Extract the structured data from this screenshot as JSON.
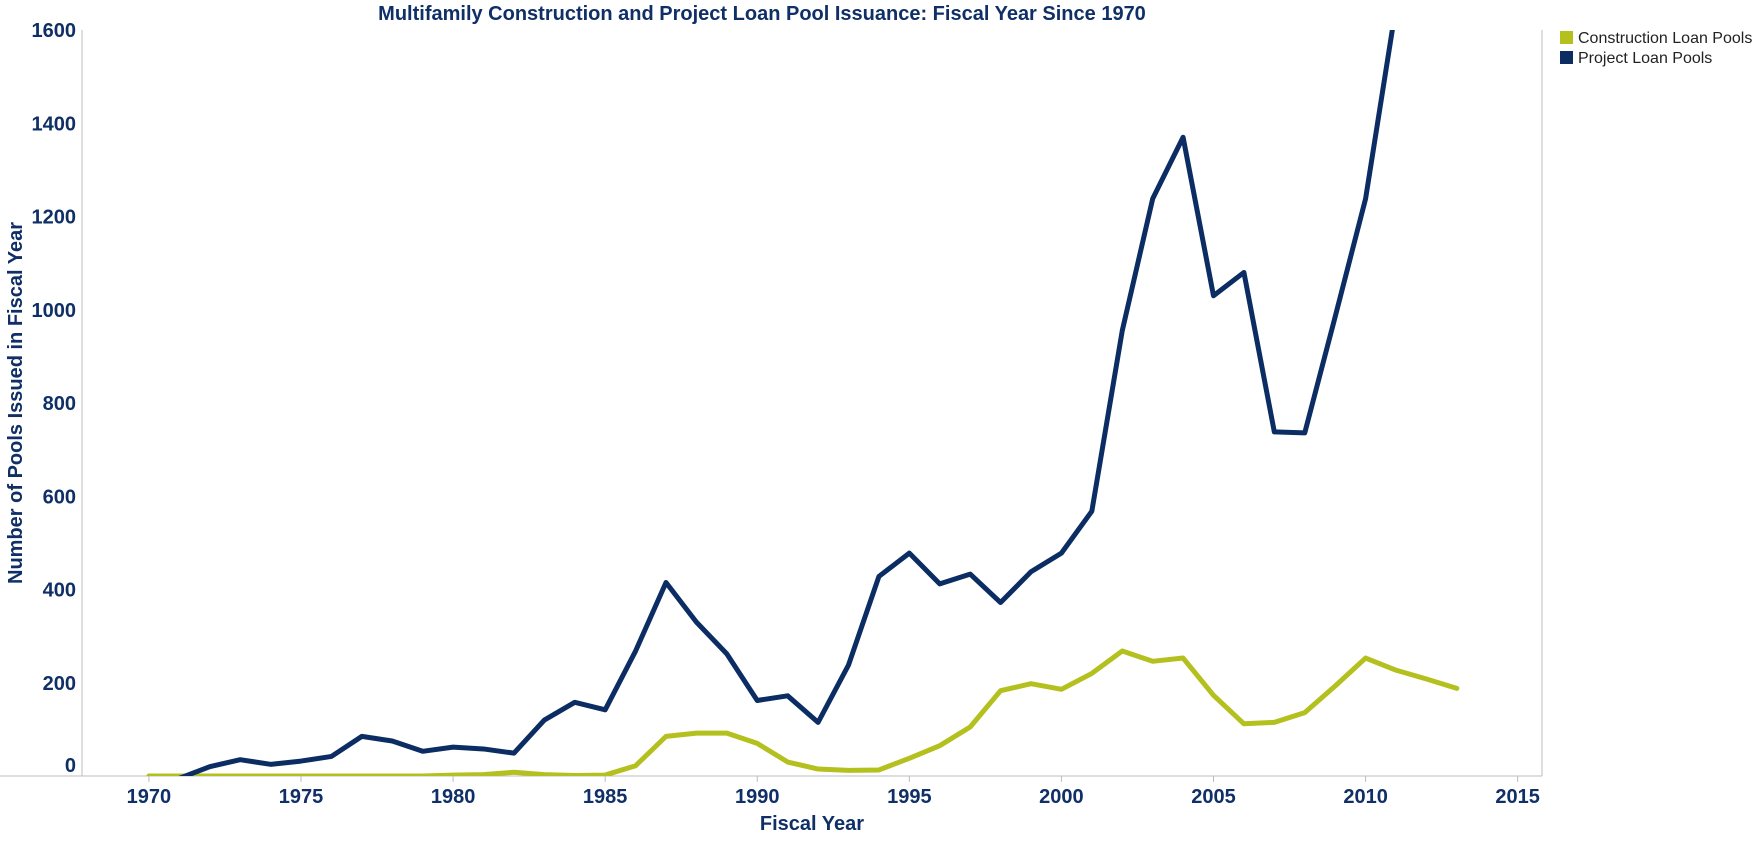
{
  "colors": {
    "text": "#0f2f66",
    "axis": "#bcbcbc",
    "frame": "#bdbdbd",
    "construction": "#b4c01e",
    "project": "#0b2d63"
  },
  "chart_data": {
    "type": "line",
    "title": "Multifamily Construction and Project Loan Pool Issuance: Fiscal Year Since 1970",
    "xlabel": "Fiscal Year",
    "ylabel": "Number of Pools Issued in Fiscal Year",
    "xlim": [
      1967.8,
      2015.8
    ],
    "ylim": [
      0,
      1600
    ],
    "xticks": [
      1970,
      1975,
      1980,
      1985,
      1990,
      1995,
      2000,
      2005,
      2010,
      2015
    ],
    "yticks": [
      0,
      200,
      400,
      600,
      800,
      1000,
      1200,
      1400,
      1600
    ],
    "grid": false,
    "legend_position": "right",
    "series": [
      {
        "name": "Construction Loan Pools",
        "x": [
          1970,
          1971,
          1972,
          1973,
          1974,
          1975,
          1976,
          1977,
          1978,
          1979,
          1980,
          1981,
          1982,
          1983,
          1984,
          1985,
          1986,
          1987,
          1988,
          1989,
          1990,
          1991,
          1992,
          1993,
          1994,
          1995,
          1996,
          1997,
          1998,
          1999,
          2000,
          2001,
          2002,
          2003,
          2004,
          2005,
          2006,
          2007,
          2008,
          2009,
          2010,
          2011,
          2012,
          2013
        ],
        "values": [
          0,
          0,
          0,
          0,
          0,
          0,
          0,
          0,
          0,
          0,
          2,
          3,
          8,
          3,
          1,
          2,
          22,
          85,
          92,
          92,
          70,
          30,
          15,
          12,
          13,
          38,
          65,
          105,
          183,
          198,
          186,
          220,
          268,
          246,
          253,
          173,
          112,
          115,
          136,
          193,
          253,
          227,
          208,
          188
        ]
      },
      {
        "name": "Project Loan Pools",
        "x": [
          1970,
          1971,
          1972,
          1973,
          1974,
          1975,
          1976,
          1977,
          1978,
          1979,
          1980,
          1981,
          1982,
          1983,
          1984,
          1985,
          1986,
          1987,
          1988,
          1989,
          1990,
          1991,
          1992,
          1993,
          1994,
          1995,
          1996,
          1997,
          1998,
          1999,
          2000,
          2001,
          2002,
          2003,
          2004,
          2005,
          2006,
          2007,
          2008,
          2009,
          2010,
          2011
        ],
        "values": [
          -20,
          -5,
          20,
          35,
          25,
          32,
          42,
          85,
          75,
          53,
          62,
          58,
          49,
          120,
          158,
          142,
          268,
          415,
          330,
          262,
          162,
          172,
          115,
          238,
          428,
          478,
          412,
          433,
          372,
          438,
          478,
          568,
          955,
          1238,
          1370,
          1030,
          1080,
          738,
          736,
          985,
          1238,
          1650
        ]
      }
    ]
  }
}
